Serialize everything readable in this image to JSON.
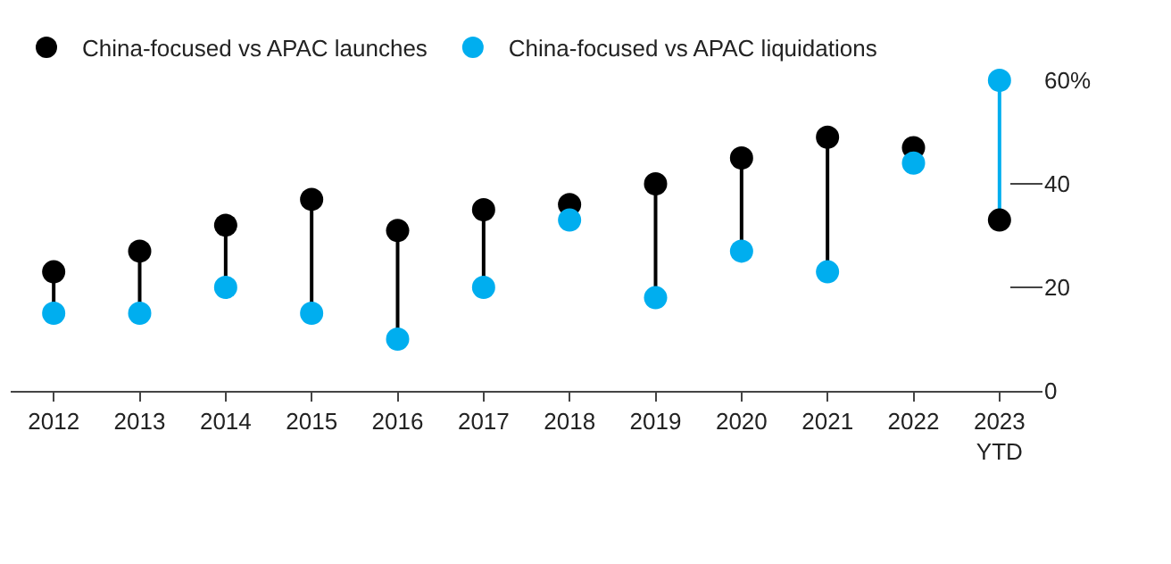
{
  "chart_data": {
    "type": "lollipop",
    "categories": [
      "2012",
      "2013",
      "2014",
      "2015",
      "2016",
      "2017",
      "2018",
      "2019",
      "2020",
      "2021",
      "2022",
      "2023\nYTD"
    ],
    "series": [
      {
        "name": "China-focused vs APAC launches",
        "color": "#000000",
        "values": [
          23,
          27,
          32,
          37,
          31,
          35,
          36,
          40,
          45,
          49,
          47,
          33
        ]
      },
      {
        "name": "China-focused vs APAC liquidations",
        "color": "#00aeef",
        "values": [
          15,
          15,
          20,
          15,
          10,
          20,
          33,
          18,
          27,
          23,
          44,
          60
        ]
      }
    ],
    "ylim": [
      0,
      60
    ],
    "yticks": [
      0,
      20,
      40,
      {
        "value": 60,
        "label": "60%"
      }
    ],
    "marker": "circle",
    "legend": "top left",
    "grid": false
  }
}
